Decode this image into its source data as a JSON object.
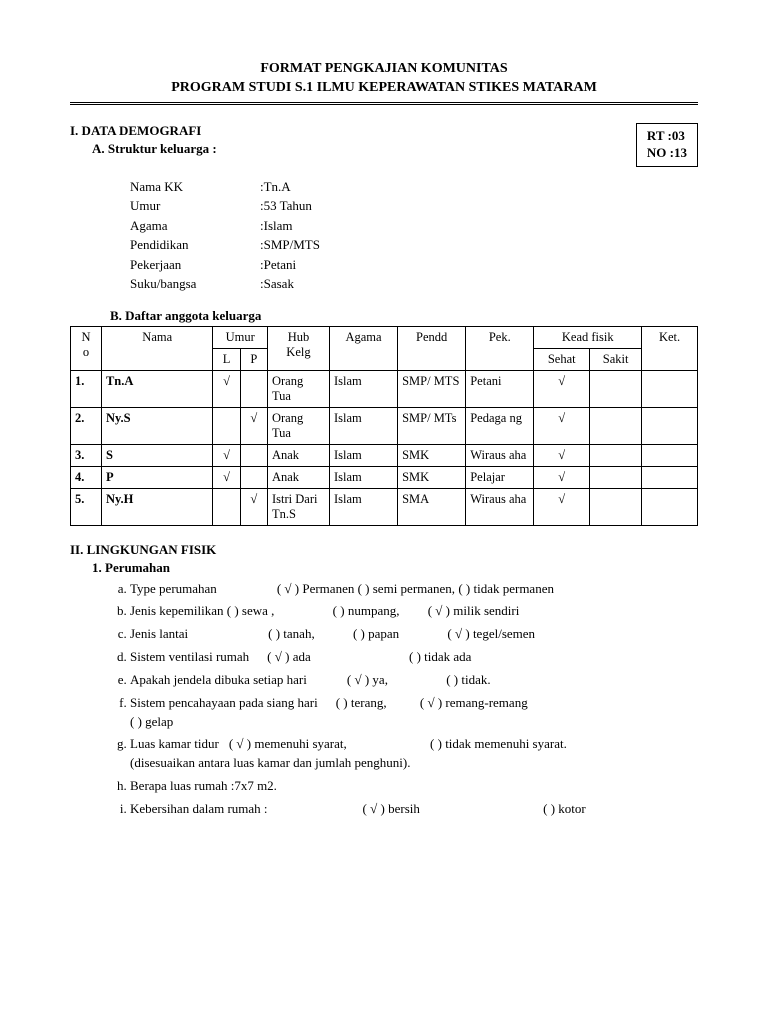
{
  "header": {
    "line1": "FORMAT PENGKAJIAN KOMUNITAS",
    "line2": "PROGRAM STUDI S.1 ILMU KEPERAWATAN STIKES MATARAM"
  },
  "rtbox": {
    "rt": "RT :03",
    "no": "NO :13"
  },
  "sectionI": {
    "title": "I.  DATA DEMOGRAFI",
    "subA": "A.  Struktur keluarga :",
    "kv": [
      {
        "label": "Nama KK",
        "value": "Tn.A"
      },
      {
        "label": "Umur",
        "value": "53 Tahun"
      },
      {
        "label": "Agama",
        "value": "Islam"
      },
      {
        "label": "Pendidikan",
        "value": "SMP/MTS"
      },
      {
        "label": "Pekerjaan",
        "value": "Petani"
      },
      {
        "label": "Suku/bangsa",
        "value": "Sasak"
      }
    ],
    "subB": "B.  Daftar anggota keluarga"
  },
  "table": {
    "headers": {
      "no": "N\no",
      "nama": "Nama",
      "umur": "Umur",
      "l": "L",
      "p": "P",
      "hub": "Hub\nKelg",
      "agama": "Agama",
      "pendd": "Pendd",
      "pek": "Pek.",
      "kead": "Kead fisik",
      "sehat": "Sehat",
      "sakit": "Sakit",
      "ket": "Ket."
    },
    "rows": [
      {
        "no": "1.",
        "nama": "Tn.A",
        "l": "√",
        "p": "",
        "hub": "Orang Tua",
        "agama": "Islam",
        "pendd": "SMP/ MTS",
        "pek": "Petani",
        "sehat": "√",
        "sakit": "",
        "ket": ""
      },
      {
        "no": "2.",
        "nama": "Ny.S",
        "l": "",
        "p": "√",
        "hub": "Orang Tua",
        "agama": "Islam",
        "pendd": "SMP/ MTs",
        "pek": "Pedaga ng",
        "sehat": "√",
        "sakit": "",
        "ket": ""
      },
      {
        "no": "3.",
        "nama": "S",
        "l": "√",
        "p": "",
        "hub": "Anak",
        "agama": "Islam",
        "pendd": "SMK",
        "pek": "Wiraus aha",
        "sehat": "√",
        "sakit": "",
        "ket": ""
      },
      {
        "no": "4.",
        "nama": "P",
        "l": "√",
        "p": "",
        "hub": "Anak",
        "agama": "Islam",
        "pendd": "SMK",
        "pek": "Pelajar",
        "sehat": "√",
        "sakit": "",
        "ket": ""
      },
      {
        "no": "5.",
        "nama": "Ny.H",
        "l": "",
        "p": "√",
        "hub": "Istri Dari Tn.S",
        "agama": "Islam",
        "pendd": "SMA",
        "pek": "Wiraus aha",
        "sehat": "√",
        "sakit": "",
        "ket": ""
      }
    ]
  },
  "sectionII": {
    "title": "II.  LINGKUNGAN FISIK",
    "sub1": "1.   Perumahan",
    "items": [
      {
        "text": "Type perumahan",
        "opts": [
          {
            "lbl": "Permanen",
            "chk": true
          },
          {
            "lbl": "semi permanen,",
            "chk": false
          },
          {
            "lbl": "tidak permanen",
            "chk": false
          }
        ],
        "gap": 60
      },
      {
        "text": "Jenis kepemilikan",
        "opts": [
          {
            "lbl": "sewa ,",
            "chk": false
          },
          {
            "lbl": "numpang,",
            "chk": false
          },
          {
            "lbl": "milik sendiri",
            "chk": true
          }
        ],
        "gap": 0,
        "sp": [
          0,
          55,
          25
        ]
      },
      {
        "text": "Jenis lantai",
        "opts": [
          {
            "lbl": "tanah,",
            "chk": false
          },
          {
            "lbl": "papan",
            "chk": false
          },
          {
            "lbl": "tegel/semen",
            "chk": true
          }
        ],
        "gap": 80,
        "sp": [
          0,
          35,
          45
        ]
      },
      {
        "text": "Sistem ventilasi rumah",
        "opts": [
          {
            "lbl": "ada",
            "chk": true
          },
          {
            "lbl": "tidak ada",
            "chk": false
          }
        ],
        "gap": 18,
        "sp": [
          0,
          95
        ]
      },
      {
        "text": "Apakah jendela dibuka setiap hari",
        "opts": [
          {
            "lbl": "ya,",
            "chk": true
          },
          {
            "lbl": "tidak.",
            "chk": false
          }
        ],
        "gap": 40,
        "sp": [
          0,
          55
        ]
      },
      {
        "text": "Sistem pencahayaan pada siang hari",
        "opts": [
          {
            "lbl": "terang,",
            "chk": false
          },
          {
            "lbl": "remang-remang",
            "chk": true
          }
        ],
        "gap": 18,
        "sp": [
          0,
          30
        ],
        "trail": "(   ) gelap"
      },
      {
        "text": "Luas kamar tidur",
        "opts": [
          {
            "lbl": "memenuhi syarat,",
            "chk": true
          },
          {
            "lbl": "tidak memenuhi syarat.",
            "chk": false
          }
        ],
        "gap": 10,
        "sp": [
          0,
          80
        ],
        "note": "(disesuaikan antara luas kamar dan jumlah penghuni)."
      },
      {
        "plain": "Berapa luas rumah :7x7 m2."
      },
      {
        "text": "Kebersihan dalam rumah :",
        "opts": [
          {
            "lbl": "bersih",
            "chk": true
          },
          {
            "lbl": "kotor",
            "chk": false
          }
        ],
        "gap": 95,
        "sp": [
          0,
          120
        ]
      }
    ]
  }
}
